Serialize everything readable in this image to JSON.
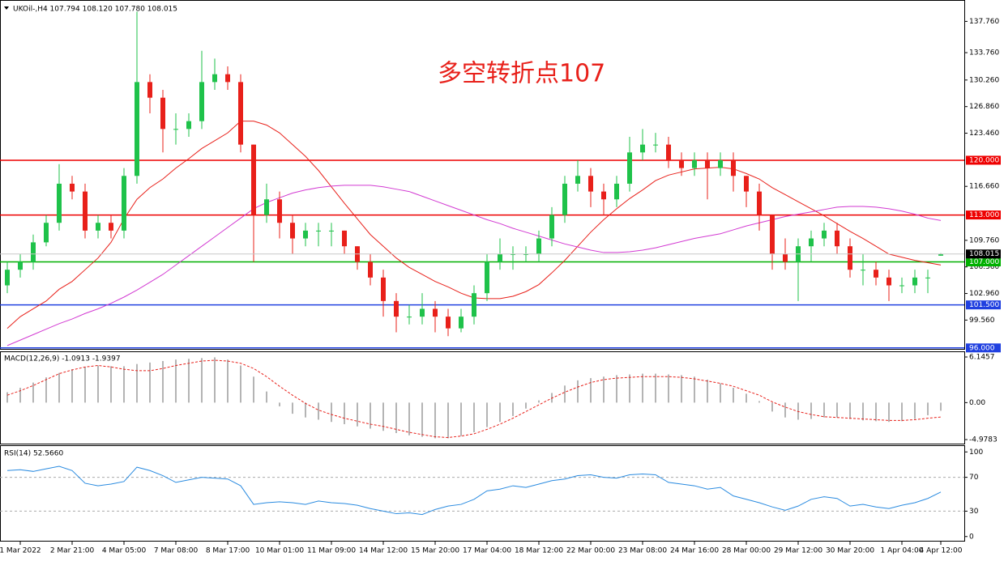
{
  "chart_data": [
    {
      "type": "candlestick",
      "title": "UKOil-,H4  107.794 108.120 107.780 108.015",
      "annotation": "多空转折点107",
      "up_color": "#1fc24a",
      "down_color": "#e8201a",
      "categories": [
        null,
        "1 Mar 2022",
        null,
        null,
        null,
        "2 Mar 21:00",
        null,
        null,
        null,
        "4 Mar 05:00",
        null,
        null,
        null,
        "7 Mar 08:00",
        null,
        null,
        null,
        "8 Mar 17:00",
        null,
        null,
        null,
        "10 Mar 01:00",
        null,
        null,
        null,
        "11 Mar 09:00",
        null,
        null,
        null,
        "14 Mar 12:00",
        null,
        null,
        null,
        "15 Mar 20:00",
        null,
        null,
        null,
        "17 Mar 04:00",
        null,
        null,
        null,
        "18 Mar 12:00",
        null,
        null,
        null,
        "22 Mar 00:00",
        null,
        null,
        null,
        "23 Mar 08:00",
        null,
        null,
        null,
        "24 Mar 16:00",
        null,
        null,
        null,
        "28 Mar 00:00",
        null,
        null,
        null,
        "29 Mar 12:00",
        null,
        null,
        null,
        "30 Mar 20:00",
        null,
        null,
        null,
        "1 Apr 04:00",
        null,
        null,
        "4 Apr 12:00"
      ],
      "open": [
        104,
        106,
        107,
        109.5,
        112,
        117,
        116,
        111,
        112,
        111,
        118,
        130,
        128,
        124,
        124,
        125,
        130,
        131,
        130,
        122,
        113,
        115,
        112,
        110,
        111,
        111,
        111,
        109,
        107,
        105,
        102,
        100,
        100,
        101,
        100,
        98.5,
        100,
        103,
        107,
        108,
        108,
        108,
        110,
        113,
        117,
        118,
        116,
        115,
        117,
        121,
        122,
        122,
        120,
        119,
        120,
        119,
        120,
        118,
        116,
        113,
        108,
        107,
        109,
        110,
        111,
        109,
        106,
        106,
        105,
        104,
        104,
        105,
        107.794
      ],
      "high": [
        107,
        108,
        110.5,
        113,
        119.5,
        118,
        117,
        113,
        113,
        119,
        139,
        131,
        129,
        126,
        126,
        134,
        133,
        132,
        131,
        122,
        117,
        116,
        113,
        112,
        112,
        112,
        111,
        109,
        108,
        106,
        103,
        101.5,
        103,
        102,
        101,
        101,
        104,
        108,
        110,
        109,
        109,
        111,
        114,
        118,
        120,
        119,
        117,
        118,
        123,
        124,
        123.5,
        123,
        121,
        121,
        121,
        121,
        121,
        118,
        117,
        113,
        110,
        110,
        111,
        112,
        112,
        110,
        108,
        107,
        106,
        105,
        106,
        106,
        108.12
      ],
      "low": [
        103,
        105,
        106,
        109,
        111,
        115,
        110,
        110,
        110,
        110,
        117,
        126,
        121,
        122,
        123,
        124,
        129,
        129,
        121,
        107,
        112,
        110,
        108,
        109,
        109,
        109,
        108,
        106,
        104,
        100,
        98,
        99,
        99,
        98,
        97.5,
        98,
        99,
        102,
        106,
        106,
        107,
        107,
        109,
        112,
        116,
        114,
        113,
        114,
        116,
        120,
        121,
        119,
        118,
        118,
        115,
        118,
        116,
        114,
        111,
        106,
        106,
        102,
        107,
        109,
        108,
        105,
        104,
        104,
        102,
        103,
        103,
        103,
        107.78
      ],
      "close": [
        106,
        107,
        109.5,
        112,
        117,
        116,
        111,
        112,
        111,
        118,
        130,
        128,
        124,
        124,
        125,
        130,
        131,
        130,
        122,
        113,
        115,
        112,
        110,
        111,
        111,
        111,
        109,
        107,
        105,
        102,
        100,
        100,
        101,
        100,
        98.5,
        100,
        103,
        107,
        108,
        108,
        108,
        110,
        113,
        117,
        118,
        116,
        115,
        117,
        121,
        122,
        122,
        120,
        119,
        120,
        119,
        120,
        118,
        116,
        113,
        108,
        107,
        109,
        110,
        111,
        109,
        106,
        106,
        105,
        104,
        104,
        105,
        105,
        108.015
      ],
      "series": [
        {
          "color": "#e8201a",
          "values": [
            98.5,
            100,
            101,
            102,
            103.5,
            104.5,
            106,
            107.5,
            109.5,
            112.5,
            115,
            116.5,
            117.6,
            119,
            120.2,
            121.5,
            122.5,
            123.5,
            125,
            125,
            124.5,
            123.5,
            122,
            120.5,
            118.7,
            116.6,
            114.5,
            112.5,
            110.5,
            109,
            107.5,
            106.3,
            105.4,
            104.5,
            103.8,
            103,
            102.4,
            102.3,
            102.3,
            102.6,
            103.2,
            104.1,
            105.6,
            107.2,
            109,
            110.8,
            112.4,
            113.8,
            115.1,
            116.2,
            117.4,
            118.1,
            118.5,
            118.9,
            119,
            119.1,
            118.9,
            118.3,
            117.6,
            116.5,
            115.6,
            114.7,
            113.8,
            112.9,
            111.9,
            110.9,
            110,
            109,
            108,
            107.6,
            107.2,
            106.9,
            106.6
          ]
        },
        {
          "color": "#d23ad2",
          "values": [
            96.3,
            97,
            97.7,
            98.4,
            99.1,
            99.7,
            100.4,
            101,
            101.7,
            102.5,
            103.4,
            104.4,
            105.4,
            106.6,
            107.8,
            109,
            110.2,
            111.4,
            112.6,
            113.8,
            114.6,
            115.2,
            115.8,
            116.2,
            116.5,
            116.7,
            116.8,
            116.8,
            116.8,
            116.6,
            116.3,
            116,
            115.4,
            114.8,
            114.2,
            113.6,
            113,
            112.4,
            111.9,
            111.3,
            110.8,
            110.3,
            109.8,
            109.3,
            108.9,
            108.5,
            108.2,
            108.2,
            108.3,
            108.5,
            108.8,
            109.2,
            109.6,
            110,
            110.3,
            110.6,
            111.1,
            111.6,
            112,
            112.4,
            112.8,
            113.1,
            113.4,
            113.7,
            114,
            114.1,
            114.1,
            114,
            113.8,
            113.5,
            113.1,
            112.6,
            112.3
          ]
        }
      ],
      "levels": [
        {
          "value": 120,
          "label": "120.000",
          "color": "#ee0000"
        },
        {
          "value": 113,
          "label": "113.000",
          "color": "#ee0000"
        },
        {
          "value": 107,
          "label": "107.000",
          "color": "#00b000"
        },
        {
          "value": 101.5,
          "label": "101.500",
          "color": "#2040e0"
        },
        {
          "value": 96,
          "label": "96.000",
          "color": "#2040e0"
        }
      ],
      "current": {
        "value": 108.015,
        "label": "108.015"
      },
      "ylim": [
        95.77,
        140.39
      ],
      "yticks": [
        {
          "value": 137.76,
          "label": "137.760"
        },
        {
          "value": 133.76,
          "label": "133.760"
        },
        {
          "value": 130.26,
          "label": "130.260"
        },
        {
          "value": 126.86,
          "label": "126.860"
        },
        {
          "value": 123.46,
          "label": "123.460"
        },
        {
          "value": 116.66,
          "label": "116.660"
        },
        {
          "value": 109.76,
          "label": "109.760"
        },
        {
          "value": 106.36,
          "label": "106.360"
        },
        {
          "value": 102.96,
          "label": "102.960"
        },
        {
          "value": 99.56,
          "label": "99.560"
        }
      ]
    },
    {
      "type": "macd",
      "title": "MACD(12,26,9) -1.0913 -1.9397",
      "series": [
        {
          "color": "#b4b4b4",
          "values": [
            1.4,
            2,
            2.7,
            3.4,
            4,
            4.5,
            4.8,
            5,
            4.9,
            4.9,
            5.2,
            5.4,
            5.6,
            5.8,
            5.9,
            6,
            6.1,
            5.8,
            5,
            3.5,
            1.5,
            -0.5,
            -1.5,
            -2,
            -2.3,
            -2.6,
            -2.9,
            -3.2,
            -3.5,
            -3.8,
            -4.1,
            -4.4,
            -4.6,
            -4.8,
            -4.8,
            -4.5,
            -4,
            -3.3,
            -2.6,
            -1.8,
            -0.8,
            0.3,
            1.3,
            2.3,
            3,
            3.3,
            3.5,
            3.7,
            3.8,
            3.9,
            3.9,
            3.8,
            3.7,
            3.5,
            3.1,
            2.6,
            2,
            1.2,
            0.2,
            -1.2,
            -2,
            -2.3,
            -2.2,
            -2,
            -2,
            -2.2,
            -2.4,
            -2.5,
            -2.6,
            -2.5,
            -2.2,
            -1.7,
            -1.0913
          ]
        },
        {
          "color": "#e8201a",
          "values": [
            1,
            1.6,
            2.3,
            3.1,
            3.9,
            4.4,
            4.8,
            5,
            4.8,
            4.5,
            4.3,
            4.3,
            4.6,
            5,
            5.3,
            5.6,
            5.7,
            5.6,
            5.3,
            4.6,
            3.5,
            2.2,
            1,
            -0.1,
            -1,
            -1.6,
            -2.1,
            -2.5,
            -2.9,
            -3.2,
            -3.6,
            -4,
            -4.3,
            -4.6,
            -4.7,
            -4.5,
            -4.2,
            -3.6,
            -2.9,
            -2.1,
            -1.2,
            -0.3,
            0.6,
            1.4,
            2.1,
            2.7,
            3.1,
            3.3,
            3.4,
            3.5,
            3.5,
            3.5,
            3.4,
            3.2,
            2.9,
            2.6,
            2.2,
            1.6,
            1,
            0.1,
            -0.6,
            -1.2,
            -1.6,
            -1.9,
            -2,
            -2.1,
            -2.2,
            -2.3,
            -2.4,
            -2.4,
            -2.3,
            -2.1,
            -1.9397
          ]
        }
      ],
      "ylim": [
        -5.52,
        6.58
      ],
      "yticks": [
        6.1457,
        {
          "value": 0,
          "label": "0.00"
        },
        -4.9783
      ]
    },
    {
      "type": "rsi",
      "title": "RSI(14) 52.5660",
      "color": "#2a8be0",
      "values": [
        78,
        79,
        77,
        80,
        83,
        78,
        63,
        60,
        62,
        65,
        82,
        78,
        72,
        64,
        67,
        70,
        69,
        68,
        60,
        38,
        40,
        41,
        40,
        38,
        42,
        40,
        39,
        37,
        33,
        30,
        27,
        28,
        26,
        32,
        36,
        38,
        44,
        54,
        56,
        60,
        58,
        62,
        66,
        68,
        72,
        73,
        70,
        69,
        73,
        74,
        73,
        64,
        62,
        60,
        56,
        58,
        48,
        44,
        40,
        35,
        31,
        36,
        44,
        47,
        45,
        36,
        38,
        35,
        33,
        37,
        40,
        45,
        52.566
      ],
      "ylim": [
        -5,
        106
      ],
      "yticks": [
        100,
        70,
        30,
        0
      ],
      "levels": [
        70,
        30
      ]
    }
  ]
}
